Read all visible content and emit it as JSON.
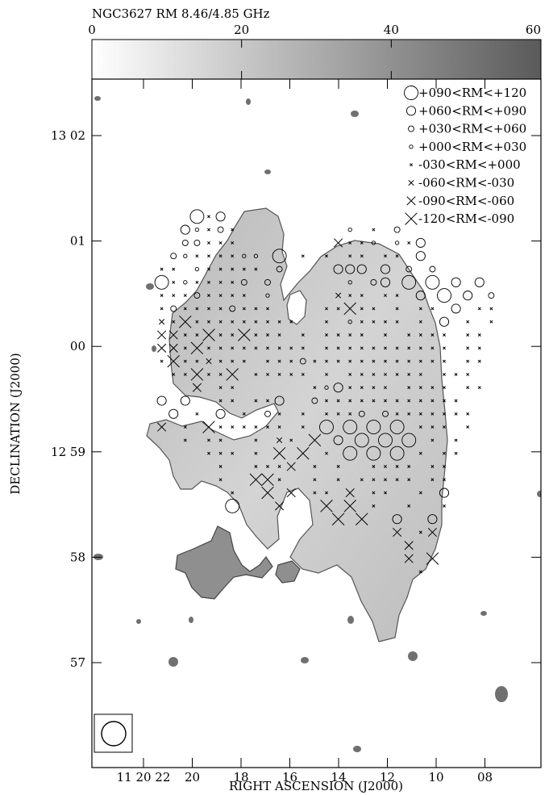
{
  "chart_data": {
    "type": "scatter",
    "title": "NGC3627 RM 8.46/4.85 GHz",
    "xlabel": "RIGHT ASCENSION (J2000)",
    "ylabel": "DECLINATION (J2000)",
    "colorbar": {
      "ticks": [
        "0",
        "20",
        "40",
        "60"
      ],
      "range": [
        0,
        60
      ],
      "colormap": "white-to-dark-gray"
    },
    "x_ticks": [
      "11 20 22",
      "20",
      "18",
      "16",
      "14",
      "12",
      "10",
      "08"
    ],
    "y_ticks": [
      "13 02",
      "01",
      "00",
      "12 59",
      "58",
      "57"
    ],
    "legend": {
      "placement": "top-right",
      "entries": [
        {
          "label": "+090<RM<+120",
          "marker": "circle",
          "level": 4
        },
        {
          "label": "+060<RM<+090",
          "marker": "circle",
          "level": 3
        },
        {
          "label": "+030<RM<+060",
          "marker": "circle",
          "level": 2
        },
        {
          "label": "+000<RM<+030",
          "marker": "circle",
          "level": 1
        },
        {
          "label": "-030<RM<+000",
          "marker": "cross",
          "level": 1
        },
        {
          "label": "-060<RM<-030",
          "marker": "cross",
          "level": 2
        },
        {
          "label": "-090<RM<-060",
          "marker": "cross",
          "level": 3
        },
        {
          "label": "-120<RM<-090",
          "marker": "cross",
          "level": 4
        }
      ]
    },
    "beam": {
      "shape": "circle",
      "placement": "bottom-left"
    },
    "marker_grid": {
      "ra_start": "11 20 19.7",
      "dec_start": "13 01 20",
      "rows": [
        "                              ",
        "    4d3                       ",
        "   31d2d         1 d 2        ",
        "   22ddd        7dd1 1d3      ",
        "  21dddd11 4 d d dd dd 3      ",
        " dd 1ddddd 2    333 3 2 2     ",
        " 4d1dddd2 2      1 23 4 4 3 3 ",
        " ddd2dddd 1     5dd dd 3 4 3 2",
        " d2dddd2ddd    dd8dd d dd 3 dd",
        " 5d8ddddddddd  d 1dddd d 3 d d",
        " 66dd8dd8ddd d dddd d dddd dd ",
        " 67d8ddddddddd ddddddddddd dd ",
        " d8dd5ddd ddd2dddddddddddd dd ",
        "  dd8dd8 ddddd d ddddddd ddd  ",
        "    7 dd      d13dddd dddd dd ",
        " 3 3  dd dd3  2dddddddddddd  ",
        "  3 d 3 d 2d d ddd2 2ddddddd  ",
        " 7 d 8dddddd d 4 4 4 4 ddd d  ",
        "   d dd  d 5d 8 3 4 4 4 d d   ",
        "     ddd d 8 8 d 4 4 4 d dd   ",
        "      d  ddd7 d d  dddd dd    ",
        "      d  88d  d d ddddd dd    ",
        "       d  8 7 dd 7 dd  d 3    ",
        "       4   7   8 8 d  d  d    ",
        "                8 8  3  3     ",
        "                     7 d7     ",
        "                      7       ",
        "                      7 8     ",
        "                       d      "
      ]
    }
  }
}
